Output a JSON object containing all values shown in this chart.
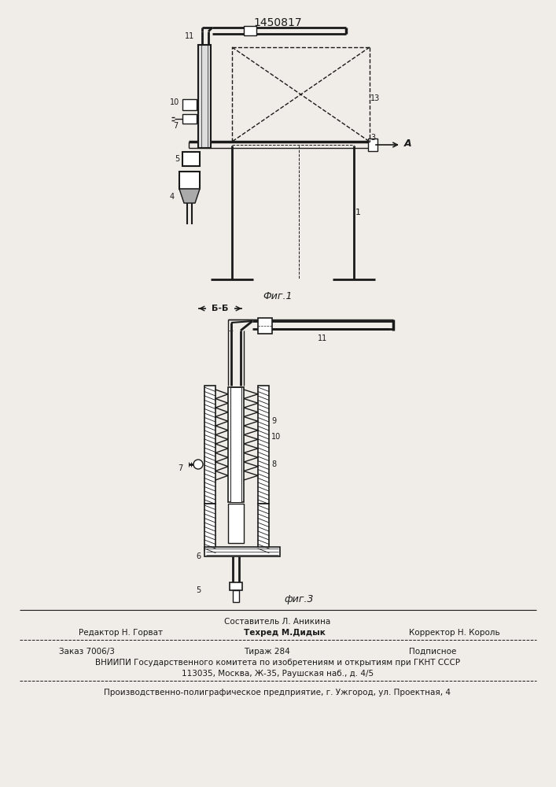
{
  "patent_number": "1450817",
  "fig1_label": "Фиг.1",
  "fig3_label": "фиг.3",
  "bb_label": "Б-Б",
  "arrow_A_label": "A",
  "bg_color": "#f0ede8",
  "line_color": "#1a1a1a",
  "hatch_color": "#555555",
  "footer_line0": "Составитель Л. Аникина",
  "footer_line1_left": "Редактор Н. Горват",
  "footer_line1_mid": "Техред М.Дидык",
  "footer_line1_right": "Корректор Н. Король",
  "footer_line2_left": "Заказ 7006/3",
  "footer_line2_mid": "Тираж 284",
  "footer_line2_right": "Подписное",
  "footer_line3": "ВНИИПИ Государственного комитета по изобретениям и открытиям при ГКНТ СССР",
  "footer_line4": "113035, Москва, Ж-35, Раушская наб., д. 4/5",
  "footer_line5": "Производственно-полиграфическое предприятие, г. Ужгород, ул. Проектная, 4"
}
